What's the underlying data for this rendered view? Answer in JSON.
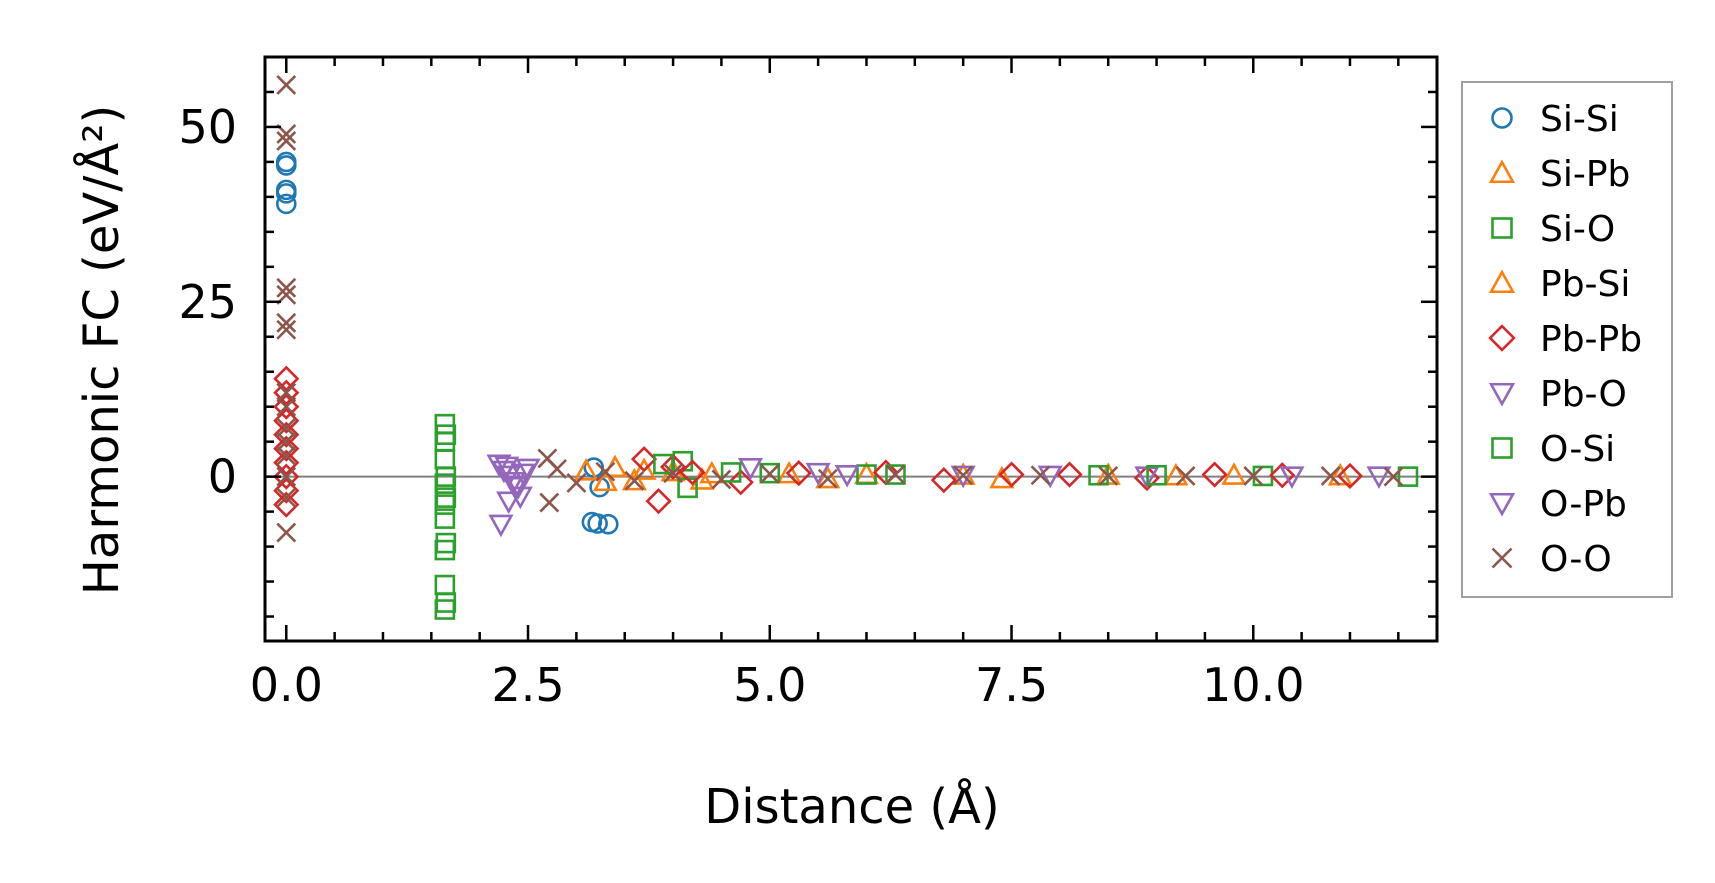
{
  "chart_data": {
    "type": "scatter",
    "title": "",
    "xlabel": "Distance (Å)",
    "ylabel": "Harmonic FC (eV/Å²)",
    "xlim": [
      -0.22,
      11.9
    ],
    "ylim": [
      -23.5,
      60
    ],
    "x_ticks": [
      0.0,
      2.5,
      5.0,
      7.5,
      10.0
    ],
    "x_tick_labels": [
      "0.0",
      "2.5",
      "5.0",
      "7.5",
      "10.0"
    ],
    "y_ticks": [
      0,
      25,
      50
    ],
    "y_tick_labels": [
      "0",
      "25",
      "50"
    ],
    "zero_line": true,
    "grid": false,
    "legend_position": "outside-right",
    "series": [
      {
        "name": "Si-Si",
        "marker": "circle",
        "color": "#1f77b4",
        "x": [
          0,
          0,
          0,
          0,
          0,
          3.16,
          3.22,
          3.33,
          3.18,
          3.24
        ],
        "y": [
          45,
          44.5,
          41,
          40.5,
          39,
          -6.5,
          -6.7,
          -6.8,
          1.3,
          -1.5
        ]
      },
      {
        "name": "Si-Pb",
        "marker": "triangle-up",
        "color": "#ff7f0e",
        "x": [
          3.1,
          3.4,
          3.6,
          4.0,
          4.3,
          5.2,
          6.0,
          7.4,
          8.5,
          9.8,
          10.9
        ],
        "y": [
          0.8,
          1.3,
          -0.6,
          0.7,
          -0.5,
          0.4,
          0.3,
          -0.3,
          0.2,
          0.2,
          0.1
        ]
      },
      {
        "name": "Si-O",
        "marker": "square",
        "color": "#2ca02c",
        "x": [
          1.64,
          1.64,
          1.64,
          1.64,
          1.64,
          1.64,
          1.64,
          1.64,
          1.64,
          4.1,
          4.15,
          5.0,
          6.0,
          8.4,
          10.1,
          11.6
        ],
        "y": [
          7.5,
          5,
          2.5,
          -1,
          -4,
          -6,
          -10.5,
          -15.5,
          -19,
          2.2,
          -1.6,
          0.5,
          0.3,
          0.2,
          0.1,
          0
        ]
      },
      {
        "name": "Pb-Si",
        "marker": "triangle-up",
        "color": "#ff7f0e",
        "x": [
          3.3,
          3.7,
          4.4,
          5.6,
          7.0,
          9.2
        ],
        "y": [
          -0.7,
          0.9,
          0.4,
          -0.3,
          0.2,
          0.1
        ]
      },
      {
        "name": "Pb-Pb",
        "marker": "diamond",
        "color": "#d62728",
        "x": [
          0,
          0,
          0,
          0,
          0,
          0,
          0,
          0,
          0,
          0,
          3.7,
          3.85,
          4.0,
          4.2,
          4.7,
          5.3,
          6.2,
          6.8,
          7.5,
          8.1,
          8.9,
          9.6,
          10.3,
          11.0
        ],
        "y": [
          14,
          12,
          10,
          8,
          6,
          4,
          2,
          0,
          -2,
          -4,
          2.5,
          -3.5,
          1.4,
          0.6,
          -0.8,
          0.5,
          0.6,
          -0.5,
          0.3,
          0.3,
          -0.2,
          0.3,
          0.2,
          0.1
        ]
      },
      {
        "name": "Pb-O",
        "marker": "triangle-down",
        "color": "#9467bd",
        "x": [
          2.2,
          2.25,
          2.3,
          2.35,
          2.4,
          2.45,
          2.3,
          2.22,
          2.5,
          4.8,
          5.5,
          7.0,
          8.9,
          10.4,
          11.3
        ],
        "y": [
          1.8,
          0.9,
          0.2,
          -0.7,
          -1.4,
          0.5,
          -3.5,
          -6.8,
          1.2,
          1.3,
          0.6,
          0.2,
          0.1,
          0.1,
          0.1
        ]
      },
      {
        "name": "O-Si",
        "marker": "square",
        "color": "#2ca02c",
        "x": [
          1.65,
          1.65,
          1.65,
          1.65,
          1.65,
          3.9,
          4.6,
          6.3,
          9.0
        ],
        "y": [
          6,
          0,
          -3,
          -9.5,
          -18,
          1.8,
          0.6,
          0.3,
          0.2
        ]
      },
      {
        "name": "O-Pb",
        "marker": "triangle-down",
        "color": "#9467bd",
        "x": [
          2.28,
          2.38,
          2.42,
          5.8,
          7.9
        ],
        "y": [
          1.5,
          -1.2,
          -2.8,
          0.3,
          0.2
        ]
      },
      {
        "name": "O-O",
        "marker": "x",
        "color": "#8c564b",
        "x": [
          0,
          0,
          0,
          0,
          0,
          0,
          0,
          0,
          0,
          0,
          0,
          0,
          0,
          0,
          0,
          2.7,
          2.72,
          2.8,
          3.0,
          3.3,
          3.6,
          4.0,
          4.5,
          5.0,
          5.6,
          6.3,
          7.0,
          7.8,
          8.5,
          9.3,
          10.0,
          10.8,
          11.45
        ],
        "y": [
          56,
          49,
          48,
          27,
          26,
          22,
          21,
          12,
          10,
          7,
          5,
          3,
          0,
          -3,
          -8,
          2.6,
          -3.7,
          1.1,
          -0.9,
          0.7,
          -0.6,
          0.5,
          -0.4,
          0.4,
          -0.3,
          0.3,
          0.2,
          0.2,
          0.1,
          0.1,
          0.1,
          0.1,
          0
        ]
      }
    ]
  }
}
